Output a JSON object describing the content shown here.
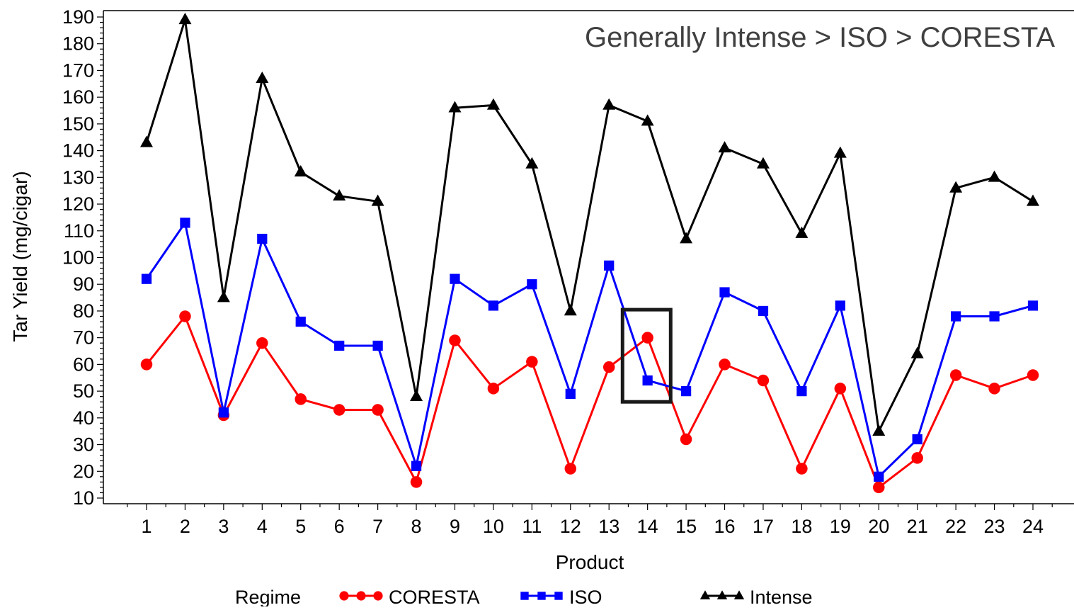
{
  "chart_data": {
    "type": "line",
    "annotation": "Generally Intense > ISO > CORESTA",
    "xlabel": "Product",
    "ylabel": "Tar Yield (mg/cigar)",
    "x": [
      1,
      2,
      3,
      4,
      5,
      6,
      7,
      8,
      9,
      10,
      11,
      12,
      13,
      14,
      15,
      16,
      17,
      18,
      19,
      20,
      21,
      22,
      23,
      24
    ],
    "xlim": [
      0,
      25
    ],
    "ylim": [
      10,
      192
    ],
    "yticks": [
      10,
      20,
      30,
      40,
      50,
      60,
      70,
      80,
      90,
      100,
      110,
      120,
      130,
      140,
      150,
      160,
      170,
      180,
      190
    ],
    "legend": {
      "title": "Regime",
      "placement": "bottom"
    },
    "highlight_box": {
      "x_range": [
        13.35,
        14.6
      ],
      "y_range": [
        46,
        80.5
      ]
    },
    "series": [
      {
        "name": "CORESTA",
        "color": "#ff0000",
        "marker": "circle",
        "values": [
          60,
          78,
          41,
          68,
          47,
          43,
          43,
          16,
          69,
          51,
          61,
          21,
          59,
          70,
          32,
          60,
          54,
          21,
          51,
          14,
          25,
          56,
          51,
          56
        ]
      },
      {
        "name": "ISO",
        "color": "#0000ff",
        "marker": "square",
        "values": [
          92,
          113,
          42,
          107,
          76,
          67,
          67,
          22,
          92,
          82,
          90,
          49,
          97,
          54,
          50,
          87,
          80,
          50,
          82,
          18,
          32,
          78,
          78,
          82
        ]
      },
      {
        "name": "Intense",
        "color": "#000000",
        "marker": "triangle",
        "values": [
          143,
          189,
          85,
          167,
          132,
          123,
          121,
          48,
          156,
          157,
          135,
          80,
          157,
          151,
          107,
          141,
          135,
          109,
          139,
          35,
          64,
          126,
          130,
          121
        ]
      }
    ]
  }
}
